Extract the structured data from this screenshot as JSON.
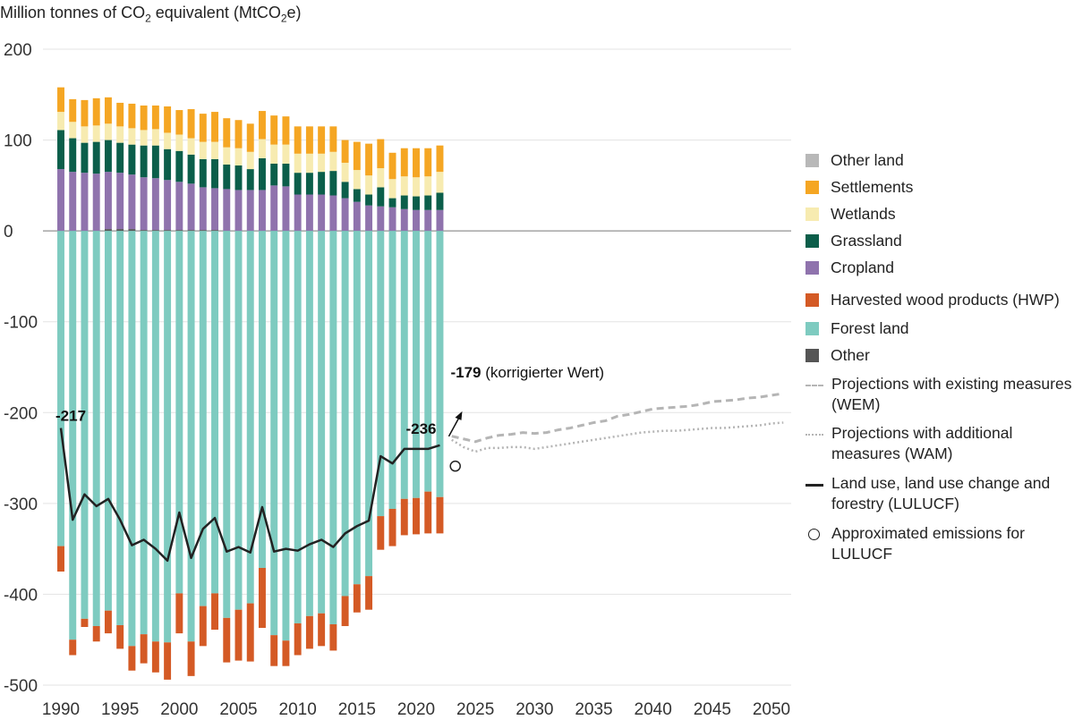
{
  "y_title_prefix": "Million tonnes of CO",
  "y_title_sub": "2",
  "y_title_mid": " equivalent (MtCO",
  "y_title_sub2": "2",
  "y_title_suffix": "e)",
  "chart_data": {
    "type": "bar",
    "stacked": true,
    "ylabel": "Million tonnes of CO2 equivalent (MtCO2e)",
    "ylim": [
      -500,
      200
    ],
    "yticks": [
      200,
      100,
      0,
      -100,
      -200,
      -300,
      -400,
      -500
    ],
    "xlim": [
      1990,
      2050
    ],
    "xticks": [
      1990,
      1995,
      2000,
      2005,
      2010,
      2015,
      2020,
      2025,
      2030,
      2035,
      2040,
      2045,
      2050
    ],
    "grid": "horizontal",
    "legend_position": "right",
    "categories": [
      1990,
      1991,
      1992,
      1993,
      1994,
      1995,
      1996,
      1997,
      1998,
      1999,
      2000,
      2001,
      2002,
      2003,
      2004,
      2005,
      2006,
      2007,
      2008,
      2009,
      2010,
      2011,
      2012,
      2013,
      2014,
      2015,
      2016,
      2017,
      2018,
      2019,
      2020,
      2021,
      2022
    ],
    "series": [
      {
        "name": "Other",
        "color": "#555555",
        "values": [
          0,
          0,
          0,
          0,
          2,
          2,
          2,
          1,
          1,
          1,
          1,
          1,
          1,
          1,
          0,
          0,
          0,
          0,
          0,
          0,
          0,
          0,
          0,
          0,
          0,
          0,
          0,
          0,
          0,
          0,
          0,
          0,
          0
        ]
      },
      {
        "name": "Cropland",
        "color": "#8f73ad",
        "values": [
          68,
          65,
          64,
          63,
          63,
          62,
          60,
          58,
          57,
          55,
          53,
          51,
          47,
          46,
          46,
          45,
          45,
          45,
          50,
          49,
          40,
          40,
          40,
          39,
          36,
          32,
          28,
          27,
          26,
          24,
          23,
          23,
          23
        ]
      },
      {
        "name": "Grassland",
        "color": "#0b5e4a",
        "values": [
          43,
          37,
          33,
          35,
          35,
          33,
          33,
          35,
          36,
          34,
          34,
          32,
          31,
          32,
          27,
          27,
          23,
          35,
          24,
          25,
          24,
          24,
          25,
          27,
          18,
          14,
          12,
          21,
          10,
          15,
          15,
          16,
          19
        ]
      },
      {
        "name": "Wetlands",
        "color": "#f7ebb0",
        "values": [
          20,
          18,
          18,
          18,
          18,
          18,
          18,
          17,
          18,
          18,
          18,
          18,
          19,
          19,
          19,
          19,
          19,
          21,
          21,
          21,
          21,
          21,
          20,
          21,
          21,
          21,
          21,
          21,
          21,
          21,
          21,
          21,
          23
        ]
      },
      {
        "name": "Settlements",
        "color": "#f5a623",
        "values": [
          27,
          25,
          29,
          30,
          29,
          26,
          27,
          27,
          26,
          29,
          27,
          32,
          31,
          33,
          32,
          31,
          31,
          31,
          32,
          31,
          30,
          30,
          30,
          28,
          25,
          31,
          35,
          32,
          29,
          31,
          32,
          31,
          29
        ]
      },
      {
        "name": "Other land",
        "color": "#b8b8b8",
        "values": [
          0,
          0,
          0,
          0,
          0,
          0,
          0,
          0,
          0,
          0,
          0,
          0,
          0,
          0,
          0,
          0,
          0,
          0,
          0,
          0,
          0,
          0,
          0,
          0,
          0,
          0,
          0,
          0,
          0,
          0,
          0,
          0,
          0
        ]
      },
      {
        "name": "Forest land",
        "color": "#7ecbc0",
        "values": [
          -347,
          -450,
          -427,
          -435,
          -418,
          -434,
          -457,
          -444,
          -452,
          -453,
          -399,
          -452,
          -413,
          -399,
          -426,
          -417,
          -410,
          -371,
          -445,
          -451,
          -432,
          -424,
          -421,
          -433,
          -402,
          -389,
          -380,
          -314,
          -306,
          -295,
          -294,
          -287,
          -293
        ]
      },
      {
        "name": "Harvested wood products (HWP)",
        "color": "#d45a25",
        "values": [
          -28,
          -17,
          -9,
          -17,
          -25,
          -26,
          -27,
          -32,
          -34,
          -41,
          -44,
          -38,
          -44,
          -40,
          -49,
          -56,
          -64,
          -66,
          -34,
          -28,
          -35,
          -36,
          -36,
          -29,
          -33,
          -31,
          -37,
          -37,
          -41,
          -40,
          -40,
          -46,
          -40
        ]
      }
    ],
    "lulucf": {
      "name": "Land use, land use change and forestry (LULUCF)",
      "color": "#222222",
      "values": [
        -217,
        -318,
        -290,
        -303,
        -295,
        -318,
        -346,
        -340,
        -350,
        -363,
        -310,
        -360,
        -328,
        -316,
        -353,
        -348,
        -354,
        -304,
        -353,
        -350,
        -352,
        -345,
        -340,
        -348,
        -333,
        -325,
        -319,
        -248,
        -256,
        -240,
        -240,
        -240,
        -236
      ]
    },
    "projections": [
      {
        "name": "Projections with existing measures (WEM)",
        "style": "dashed",
        "color": "#b5b5b5",
        "x": [
          2023,
          2024,
          2025,
          2026,
          2027,
          2028,
          2029,
          2030,
          2031,
          2032,
          2033,
          2034,
          2035,
          2036,
          2037,
          2038,
          2039,
          2040,
          2041,
          2042,
          2043,
          2044,
          2045,
          2046,
          2047,
          2048,
          2049,
          2050,
          2051
        ],
        "y": [
          -226,
          -229,
          -232,
          -228,
          -225,
          -224,
          -222,
          -223,
          -222,
          -219,
          -217,
          -214,
          -211,
          -209,
          -204,
          -202,
          -199,
          -196,
          -195,
          -194,
          -193,
          -191,
          -188,
          -187,
          -186,
          -184,
          -183,
          -181,
          -179
        ]
      },
      {
        "name": "Projections with additional measures (WAM)",
        "style": "dotted",
        "color": "#b5b5b5",
        "x": [
          2023,
          2024,
          2025,
          2026,
          2027,
          2028,
          2029,
          2030,
          2031,
          2032,
          2033,
          2034,
          2035,
          2036,
          2037,
          2038,
          2039,
          2040,
          2041,
          2042,
          2043,
          2044,
          2045,
          2046,
          2047,
          2048,
          2049,
          2050,
          2051
        ],
        "y": [
          -230,
          -238,
          -243,
          -239,
          -239,
          -238,
          -238,
          -240,
          -238,
          -236,
          -234,
          -232,
          -230,
          -228,
          -226,
          -224,
          -222,
          -221,
          -220,
          -220,
          -219,
          -218,
          -217,
          -217,
          -216,
          -215,
          -214,
          -212,
          -211
        ]
      }
    ],
    "approx_point": {
      "name": "Approximated emissions for LULUCF",
      "x": 2023,
      "y": -255
    },
    "annotations": [
      {
        "text": "-217",
        "x": 1990,
        "y": -217,
        "bold": true
      },
      {
        "text": "-236",
        "x": 2022,
        "y": -236,
        "bold": true
      },
      {
        "text_bold": "-179",
        "text": " (korrigierter Wert)",
        "x": 2023,
        "y": -179
      }
    ]
  },
  "legend": [
    {
      "type": "swatch",
      "label": "Other land",
      "color": "#b8b8b8"
    },
    {
      "type": "swatch",
      "label": "Settlements",
      "color": "#f5a623"
    },
    {
      "type": "swatch",
      "label": "Wetlands",
      "color": "#f7ebb0"
    },
    {
      "type": "swatch",
      "label": "Grassland",
      "color": "#0b5e4a"
    },
    {
      "type": "swatch",
      "label": "Cropland",
      "color": "#8f73ad"
    },
    {
      "type": "swatch",
      "label": "Harvested wood products (HWP)",
      "color": "#d45a25"
    },
    {
      "type": "swatch",
      "label": "Forest land",
      "color": "#7ecbc0"
    },
    {
      "type": "swatch",
      "label": "Other",
      "color": "#555555"
    },
    {
      "type": "dashed",
      "label": "Projections with existing measures (WEM)",
      "color": "#b5b5b5"
    },
    {
      "type": "dotted",
      "label": "Projections with additional measures (WAM)",
      "color": "#b5b5b5"
    },
    {
      "type": "solid",
      "label": "Land use, land use change and forestry (LULUCF)",
      "color": "#222222"
    },
    {
      "type": "circle",
      "label": "Approximated emissions for LULUCF",
      "color": "#222222"
    }
  ]
}
